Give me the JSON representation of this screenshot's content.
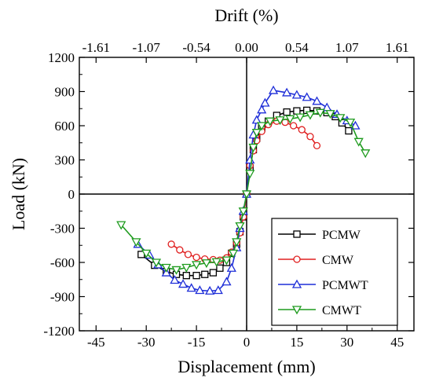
{
  "chart_data": {
    "type": "line",
    "xlabel": "Displacement (mm)",
    "ylabel": "Load (kN)",
    "x2label": "Drift (%)",
    "xlim": [
      -50,
      50
    ],
    "ylim": [
      -1200,
      1200
    ],
    "xticks": [
      "-45",
      "-30",
      "-15",
      "0",
      "15",
      "30",
      "45"
    ],
    "yticks": [
      "-1200",
      "-900",
      "-600",
      "-300",
      "0",
      "300",
      "600",
      "900",
      "1200"
    ],
    "x2ticks": [
      "-1.61",
      "-1.07",
      "-0.54",
      "0.00",
      "0.54",
      "1.07",
      "1.61"
    ],
    "legend_position": "bottom-right",
    "grid": false,
    "series": [
      {
        "name": "PCMW",
        "color": "#000000",
        "marker": "square",
        "points": [
          [
            -31.5,
            -530
          ],
          [
            -27.5,
            -625
          ],
          [
            -24,
            -680
          ],
          [
            -21,
            -705
          ],
          [
            -18,
            -715
          ],
          [
            -15,
            -715
          ],
          [
            -12.5,
            -705
          ],
          [
            -10,
            -690
          ],
          [
            -8,
            -650
          ],
          [
            -6,
            -600
          ],
          [
            -4.5,
            -520
          ],
          [
            -3,
            -440
          ],
          [
            -2,
            -330
          ],
          [
            -1,
            -200
          ],
          [
            0,
            0
          ],
          [
            1,
            230
          ],
          [
            2,
            390
          ],
          [
            3,
            490
          ],
          [
            4.5,
            580
          ],
          [
            6.5,
            640
          ],
          [
            9,
            690
          ],
          [
            12,
            720
          ],
          [
            15,
            730
          ],
          [
            18,
            735
          ],
          [
            21,
            730
          ],
          [
            24,
            715
          ],
          [
            26.5,
            680
          ],
          [
            28.5,
            625
          ],
          [
            30.5,
            555
          ]
        ]
      },
      {
        "name": "CMW",
        "color": "#e02020",
        "marker": "circle",
        "points": [
          [
            -22.5,
            -440
          ],
          [
            -20,
            -490
          ],
          [
            -17.5,
            -530
          ],
          [
            -15,
            -555
          ],
          [
            -12.5,
            -570
          ],
          [
            -10,
            -575
          ],
          [
            -8,
            -580
          ],
          [
            -6,
            -560
          ],
          [
            -4.5,
            -510
          ],
          [
            -3,
            -430
          ],
          [
            -2,
            -340
          ],
          [
            -1,
            -200
          ],
          [
            0,
            0
          ],
          [
            1,
            250
          ],
          [
            2,
            380
          ],
          [
            3,
            470
          ],
          [
            4.5,
            550
          ],
          [
            6.5,
            610
          ],
          [
            9,
            640
          ],
          [
            11.5,
            630
          ],
          [
            14,
            600
          ],
          [
            16.5,
            565
          ],
          [
            19,
            505
          ],
          [
            21,
            425
          ]
        ]
      },
      {
        "name": "PCMWT",
        "color": "#1f2fd8",
        "marker": "triangle-up",
        "points": [
          [
            -32.5,
            -440
          ],
          [
            -29,
            -535
          ],
          [
            -26.5,
            -620
          ],
          [
            -24,
            -690
          ],
          [
            -21.5,
            -755
          ],
          [
            -19,
            -790
          ],
          [
            -16.5,
            -825
          ],
          [
            -14,
            -845
          ],
          [
            -11,
            -850
          ],
          [
            -8.5,
            -845
          ],
          [
            -6,
            -770
          ],
          [
            -4.5,
            -650
          ],
          [
            -3,
            -470
          ],
          [
            -2,
            -300
          ],
          [
            -1,
            -150
          ],
          [
            0,
            0
          ],
          [
            1,
            300
          ],
          [
            2,
            520
          ],
          [
            3,
            650
          ],
          [
            4.5,
            740
          ],
          [
            5.5,
            800
          ],
          [
            8,
            910
          ],
          [
            12,
            890
          ],
          [
            15,
            870
          ],
          [
            18,
            850
          ],
          [
            21,
            815
          ],
          [
            24,
            760
          ],
          [
            27,
            700
          ],
          [
            30,
            645
          ],
          [
            32.5,
            600
          ]
        ]
      },
      {
        "name": "CMWT",
        "color": "#1e9b1e",
        "marker": "triangle-down",
        "points": [
          [
            -37.5,
            -270
          ],
          [
            -33,
            -420
          ],
          [
            -30,
            -520
          ],
          [
            -27,
            -600
          ],
          [
            -24,
            -645
          ],
          [
            -21,
            -665
          ],
          [
            -18,
            -645
          ],
          [
            -15,
            -620
          ],
          [
            -12,
            -605
          ],
          [
            -9,
            -595
          ],
          [
            -6,
            -580
          ],
          [
            -4,
            -520
          ],
          [
            -3,
            -420
          ],
          [
            -2,
            -280
          ],
          [
            -1,
            -150
          ],
          [
            0,
            0
          ],
          [
            1,
            180
          ],
          [
            2,
            410
          ],
          [
            3,
            540
          ],
          [
            4.5,
            600
          ],
          [
            7,
            640
          ],
          [
            10,
            650
          ],
          [
            13,
            660
          ],
          [
            16,
            675
          ],
          [
            19,
            695
          ],
          [
            22,
            715
          ],
          [
            25,
            705
          ],
          [
            28,
            670
          ],
          [
            31,
            630
          ],
          [
            33.5,
            460
          ],
          [
            35.5,
            360
          ]
        ]
      }
    ]
  }
}
